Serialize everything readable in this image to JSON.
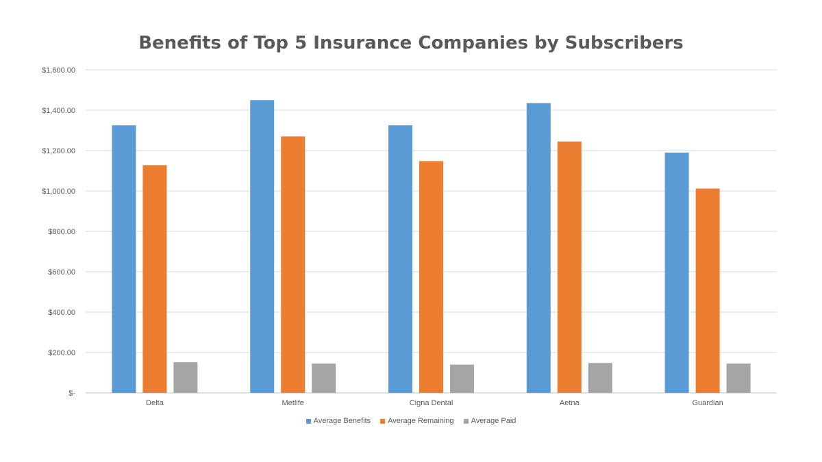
{
  "chart_data": {
    "type": "bar",
    "title": "Benefits of Top 5 Insurance Companies by Subscribers",
    "categories": [
      "Delta",
      "Metlife",
      "Cigna Dental",
      "Aetna",
      "Guardian"
    ],
    "series": [
      {
        "name": "Average Benefits",
        "color": "#5B9BD5",
        "values": [
          1325,
          1450,
          1325,
          1435,
          1190
        ]
      },
      {
        "name": "Average Remaining",
        "color": "#ED7D31",
        "values": [
          1128,
          1270,
          1148,
          1245,
          1012
        ]
      },
      {
        "name": "Average Paid",
        "color": "#A5A5A5",
        "values": [
          152,
          145,
          140,
          148,
          145
        ]
      }
    ],
    "ylim": [
      0,
      1600
    ],
    "yticks": [
      0,
      200,
      400,
      600,
      800,
      1000,
      1200,
      1400,
      1600
    ],
    "ytick_labels": [
      "$-",
      "$200.00",
      "$400.00",
      "$600.00",
      "$800.00",
      "$1,000.00",
      "$1,200.00",
      "$1,400.00",
      "$1,600.00"
    ],
    "xlabel": "",
    "ylabel": "",
    "grid": true,
    "legend_position": "bottom"
  }
}
